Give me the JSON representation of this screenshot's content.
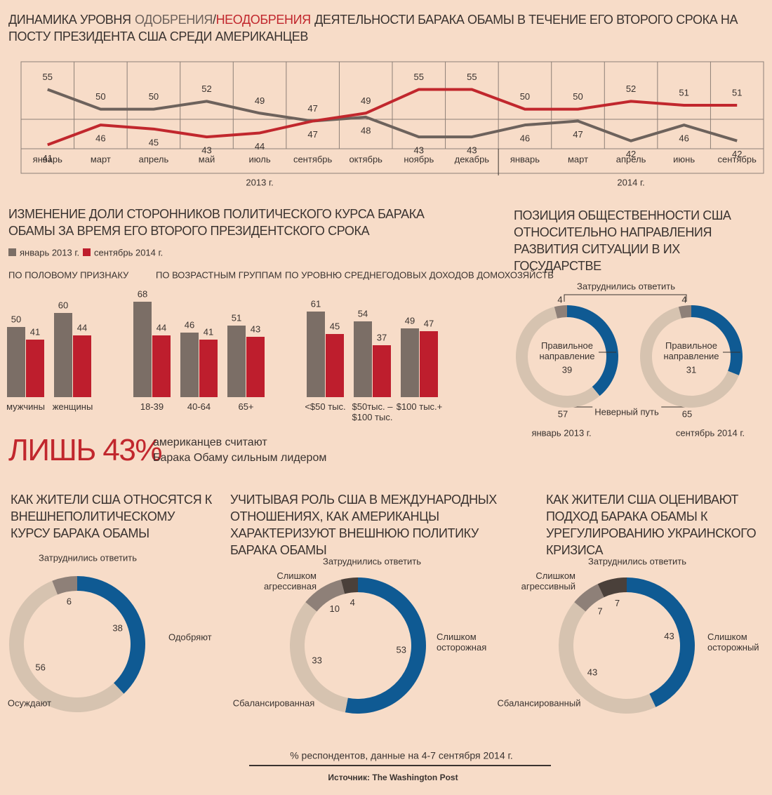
{
  "chart_data": [
    {
      "type": "line",
      "title_prefix": "ДИНАМИКА УРОВНЯ",
      "title_separator": "/",
      "title_suffix": "ДЕЯТЕЛЬНОСТИ БАРАКА ОБАМЫ В ТЕЧЕНИЕ ЕГО ВТОРОГО СРОКА НА ПОСТУ ПРЕЗИДЕНТА США СРЕДИ АМЕРИКАНЦЕВ",
      "year_groups": [
        {
          "label": "2013 г.",
          "categories": [
            "январь",
            "март",
            "апрель",
            "май",
            "июль",
            "сентябрь",
            "октябрь",
            "ноябрь",
            "декабрь"
          ]
        },
        {
          "label": "2014 г.",
          "categories": [
            "январь",
            "март",
            "апрель",
            "июнь",
            "сентябрь"
          ]
        }
      ],
      "series": [
        {
          "name": "ОДОБРЕНИЯ",
          "color": "#6d625c",
          "values": [
            55,
            50,
            50,
            52,
            49,
            47,
            48,
            43,
            43,
            46,
            47,
            42,
            46,
            42
          ]
        },
        {
          "name": "НЕОДОБРЕНИЯ",
          "color": "#c1272d",
          "values": [
            41,
            46,
            45,
            43,
            44,
            47,
            49,
            55,
            55,
            50,
            50,
            52,
            51,
            51
          ]
        }
      ],
      "ylim": [
        40,
        62
      ]
    },
    {
      "type": "bar",
      "title": "ИЗМЕНЕНИЕ ДОЛИ СТОРОННИКОВ ПОЛИТИЧЕСКОГО КУРСА БАРАКА ОБАМЫ ЗА ВРЕМЯ ЕГО ВТОРОГО ПРЕЗИДЕНТСКОГО СРОКА",
      "series": [
        {
          "name": "январь 2013 г.",
          "color": "#7b6e66"
        },
        {
          "name": "сентябрь 2014 г.",
          "color": "#be1e2d"
        }
      ],
      "panels": [
        {
          "label": "ПО ПОЛОВОМУ ПРИЗНАКУ",
          "categories": [
            "мужчины",
            "женщины"
          ],
          "series": [
            {
              "values": [
                50,
                60
              ]
            },
            {
              "values": [
                41,
                44
              ]
            }
          ]
        },
        {
          "label": "ПО ВОЗРАСТНЫМ ГРУППАМ",
          "categories": [
            "18-39",
            "40-64",
            "65+"
          ],
          "series": [
            {
              "values": [
                68,
                46,
                51
              ]
            },
            {
              "values": [
                44,
                41,
                43
              ]
            }
          ]
        },
        {
          "label": "ПО УРОВНЮ СРЕДНЕГОДОВЫХ ДОХОДОВ ДОМОХОЗЯЙСТВ",
          "categories": [
            "<$50 тыс.",
            "$50тыс. – $100 тыс.",
            "$100 тыс.+"
          ],
          "series": [
            {
              "values": [
                61,
                54,
                49
              ]
            },
            {
              "values": [
                45,
                37,
                47
              ]
            }
          ]
        }
      ],
      "ylim": [
        0,
        70
      ]
    },
    {
      "type": "donut",
      "title": "ПОЗИЦИЯ ОБЩЕСТВЕННОСТИ США ОТНОСИТЕЛЬНО НАПРАВЛЕНИЯ РАЗВИТИЯ СИТУАЦИИ В ИХ ГОСУДАРСТВЕ",
      "categories": [
        "Правильное направление",
        "Неверный путь",
        "Затруднились ответить"
      ],
      "colors": [
        "#0f5a93",
        "#d6c3b0",
        "#8e8078"
      ],
      "pies": [
        {
          "label": "январь 2013 г.",
          "values": [
            39,
            57,
            4
          ]
        },
        {
          "label": "сентябрь 2014 г.",
          "values": [
            31,
            65,
            4
          ]
        }
      ]
    },
    {
      "type": "donut",
      "title": "КАК ЖИТЕЛИ США ОТНОСЯТСЯ К ВНЕШНЕПОЛИТИЧЕСКОМУ КУРСУ БАРАКА ОБАМЫ",
      "categories": [
        "Одобряют",
        "Осуждают",
        "Затруднились ответить"
      ],
      "colors": [
        "#0f5a93",
        "#d6c3b0",
        "#8e8078"
      ],
      "values": [
        38,
        56,
        6
      ]
    },
    {
      "type": "donut",
      "title": "УЧИТЫВАЯ РОЛЬ США В МЕЖДУНАРОДНЫХ ОТНОШЕНИЯХ, КАК АМЕРИКАНЦЫ ХАРАКТЕРИЗУЮТ ВНЕШНЮЮ ПОЛИТИКУ БАРАКА ОБАМЫ",
      "categories": [
        "Слишком осторожная",
        "Сбалансированная",
        "Слишком агрессивная",
        "Затруднились ответить"
      ],
      "colors": [
        "#0f5a93",
        "#d6c3b0",
        "#8e8078",
        "#4a403a"
      ],
      "values": [
        53,
        33,
        10,
        4
      ]
    },
    {
      "type": "donut",
      "title": "КАК ЖИТЕЛИ США ОЦЕНИВАЮТ ПОДХОД БАРАКА ОБАМЫ К УРЕГУЛИРОВАНИЮ УКРАИНСКОГО КРИЗИСА",
      "categories": [
        "Слишком осторожный",
        "Сбалансированный",
        "Слишком агрессивный",
        "Затруднились ответить"
      ],
      "colors": [
        "#0f5a93",
        "#d6c3b0",
        "#8e8078",
        "#4a403a"
      ],
      "values": [
        43,
        43,
        7,
        7
      ]
    }
  ],
  "callout": {
    "headline": "ЛИШЬ 43%",
    "text_lines": [
      "американцев считают",
      "Барака Обаму сильным лидером"
    ]
  },
  "footer": {
    "note": "% респондентов, данные на 4-7 сентября 2014 г.",
    "source": "Источник: The Washington Post"
  }
}
